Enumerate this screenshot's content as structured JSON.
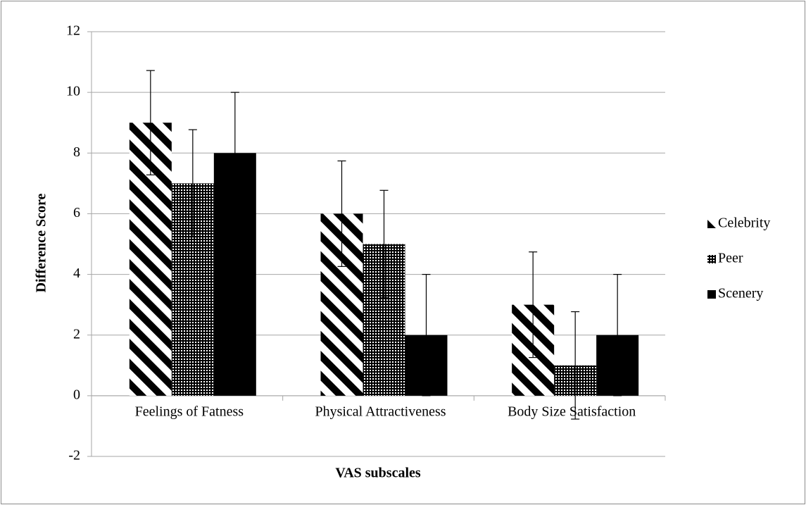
{
  "chart_data": {
    "type": "bar",
    "x_label": "VAS subscales",
    "y_label": "Difference Score",
    "categories": [
      "Feelings of Fatness",
      "Physical Attractiveness",
      "Body Size Satisfaction"
    ],
    "series": [
      {
        "name": "Celebrity",
        "color": "#000000",
        "fill": "stripes",
        "values": [
          9,
          6,
          3
        ],
        "errors": [
          1.72,
          1.74,
          1.74
        ]
      },
      {
        "name": "Peer",
        "color": "#000000",
        "fill": "dots",
        "values": [
          7,
          5,
          1
        ],
        "errors": [
          1.77,
          1.77,
          1.77
        ]
      },
      {
        "name": "Scenery",
        "color": "#000000",
        "fill": "solid",
        "values": [
          8,
          2,
          2
        ],
        "errors": [
          2,
          2,
          2
        ]
      }
    ],
    "ylim": [
      -2,
      12
    ],
    "yticks": [
      -2,
      0,
      2,
      4,
      6,
      8,
      10,
      12
    ],
    "grid": true,
    "legend": "right"
  }
}
